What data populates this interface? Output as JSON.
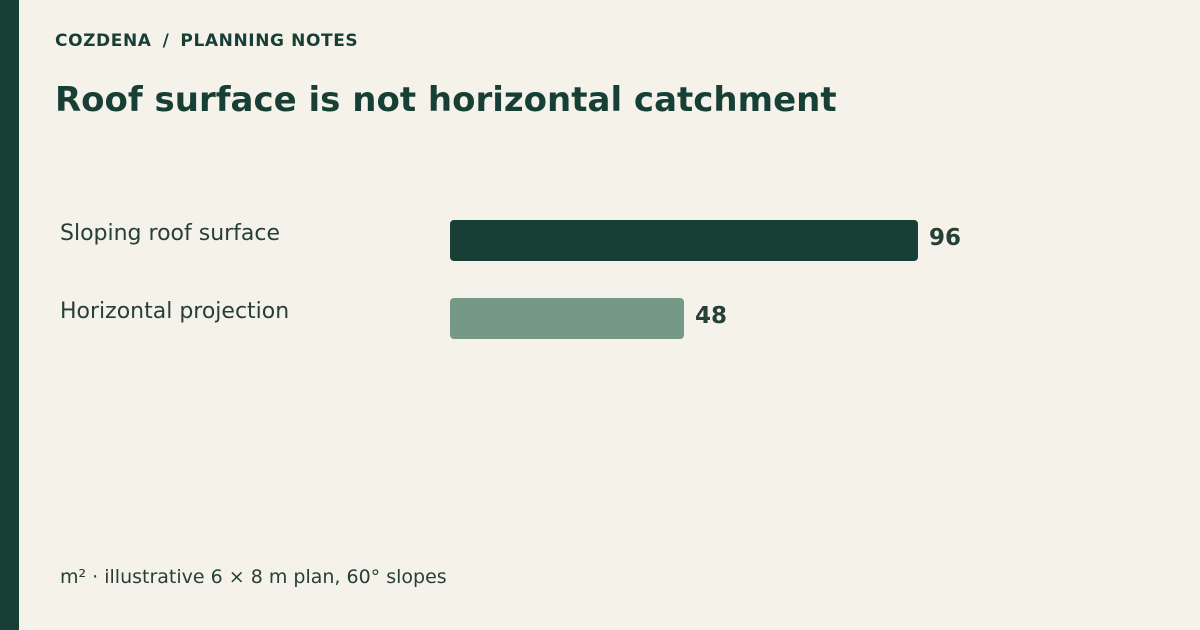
{
  "header": {
    "brand": "COZDENA",
    "separator": "/",
    "section": "PLANNING NOTES"
  },
  "title": "Roof surface is not horizontal catchment",
  "footnote": "m² · illustrative 6 × 8 m plan, 60° slopes",
  "colors": {
    "background": "#f5f2ea",
    "accent": "#173f35",
    "primary_bar": "#173f35",
    "secondary_bar": "#769886",
    "text": "#263f37"
  },
  "chart_data": {
    "type": "bar",
    "orientation": "horizontal",
    "title": "Roof surface is not horizontal catchment",
    "unit": "m²",
    "categories": [
      "Sloping roof surface",
      "Horizontal projection"
    ],
    "values": [
      96,
      48
    ],
    "value_labels": [
      "96",
      "48"
    ],
    "bar_colors": [
      "#173f35",
      "#769886"
    ],
    "xlim": [
      0,
      96
    ],
    "grid": false,
    "legend": "none"
  }
}
